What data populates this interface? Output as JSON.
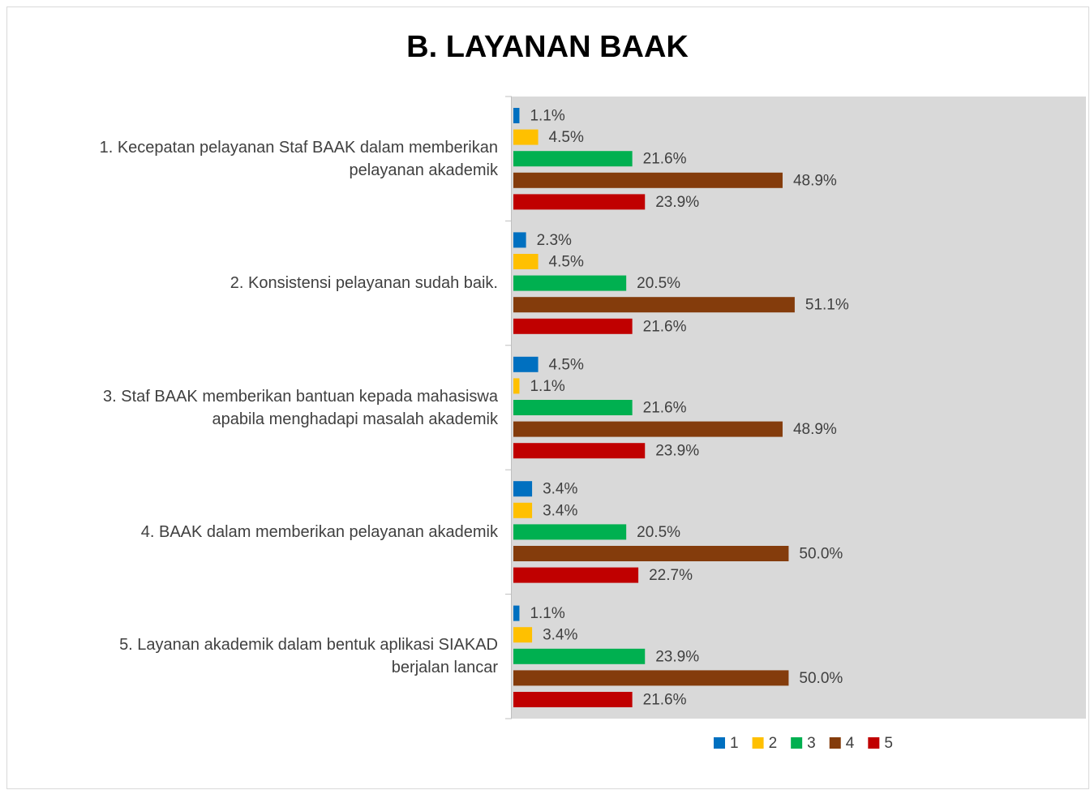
{
  "chart_data": {
    "type": "bar",
    "orientation": "horizontal",
    "title": "B. LAYANAN BAAK",
    "categories": [
      "1. Kecepatan pelayanan Staf BAAK dalam memberikan\npelayanan akademik",
      "2. Konsistensi pelayanan sudah baik.",
      "3. Staf BAAK memberikan bantuan kepada mahasiswa\napabila menghadapi masalah akademik",
      "4. BAAK dalam memberikan pelayanan akademik",
      "5. Layanan akademik dalam bentuk aplikasi SIAKAD\nberjalan lancar"
    ],
    "series": [
      {
        "name": "1",
        "color": "#0070c0",
        "values": [
          1.1,
          2.3,
          4.5,
          3.4,
          1.1
        ],
        "value_labels": [
          "1.1%",
          "2.3%",
          "4.5%",
          "3.4%",
          "1.1%"
        ]
      },
      {
        "name": "2",
        "color": "#ffc000",
        "values": [
          4.5,
          4.5,
          1.1,
          3.4,
          3.4
        ],
        "value_labels": [
          "4.5%",
          "4.5%",
          "1.1%",
          "3.4%",
          "3.4%"
        ]
      },
      {
        "name": "3",
        "color": "#00b050",
        "values": [
          21.6,
          20.5,
          21.6,
          20.5,
          23.9
        ],
        "value_labels": [
          "21.6%",
          "20.5%",
          "21.6%",
          "20.5%",
          "23.9%"
        ]
      },
      {
        "name": "4",
        "color": "#843c0c",
        "values": [
          48.9,
          51.1,
          48.9,
          50.0,
          50.0
        ],
        "value_labels": [
          "48.9%",
          "51.1%",
          "48.9%",
          "50.0%",
          "50.0%"
        ]
      },
      {
        "name": "5",
        "color": "#c00000",
        "values": [
          23.9,
          21.6,
          23.9,
          22.7,
          21.6
        ],
        "value_labels": [
          "23.9%",
          "21.6%",
          "23.9%",
          "22.7%",
          "21.6%"
        ]
      }
    ],
    "xlim": [
      0,
      104
    ],
    "legend": "bottom"
  }
}
